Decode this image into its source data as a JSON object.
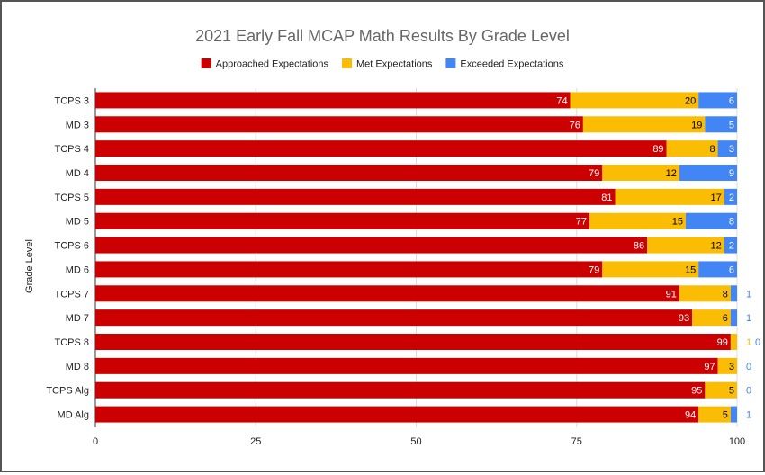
{
  "chart_data": {
    "type": "bar",
    "orientation": "horizontal",
    "stacked": true,
    "title": "2021 Early Fall MCAP Math Results By Grade Level",
    "xlabel": "",
    "ylabel": "Grade Level",
    "xlim": [
      0,
      100
    ],
    "xticks": [
      "0",
      "25",
      "50",
      "75",
      "100"
    ],
    "grid": true,
    "legend_position": "top",
    "categories": [
      "TCPS 3",
      "MD 3",
      "TCPS 4",
      "MD 4",
      "TCPS 5",
      "MD 5",
      "TCPS 6",
      "MD 6",
      "TCPS 7",
      "MD 7",
      "TCPS 8",
      "MD 8",
      "TCPS Alg",
      "MD Alg"
    ],
    "series": [
      {
        "name": "Approached Expectations",
        "color": "#cc0000",
        "label_color": "#ffffff",
        "values": [
          74,
          76,
          89,
          79,
          81,
          77,
          86,
          79,
          91,
          93,
          99,
          97,
          95,
          94
        ]
      },
      {
        "name": "Met Expectations",
        "color": "#fbbc04",
        "label_color": "#000000",
        "values": [
          20,
          19,
          8,
          12,
          17,
          15,
          12,
          15,
          8,
          6,
          1,
          3,
          5,
          5
        ]
      },
      {
        "name": "Exceeded Expectations",
        "color": "#4285f4",
        "label_color": "#ffffff",
        "values": [
          6,
          5,
          3,
          9,
          2,
          8,
          2,
          6,
          1,
          1,
          0,
          0,
          0,
          1
        ]
      }
    ]
  }
}
